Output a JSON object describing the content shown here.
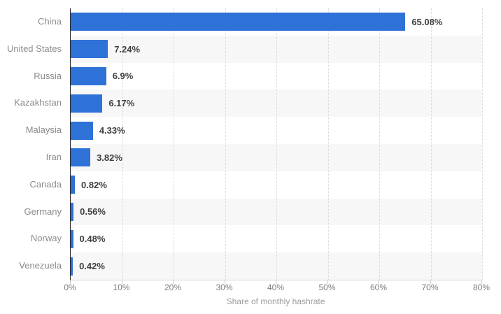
{
  "chart_data": {
    "type": "bar",
    "orientation": "horizontal",
    "categories": [
      "China",
      "United States",
      "Russia",
      "Kazakhstan",
      "Malaysia",
      "Iran",
      "Canada",
      "Germany",
      "Norway",
      "Venezuela"
    ],
    "values": [
      65.08,
      7.24,
      6.9,
      6.17,
      4.33,
      3.82,
      0.82,
      0.56,
      0.48,
      0.42
    ],
    "value_labels": [
      "65.08%",
      "7.24%",
      "6.9%",
      "6.17%",
      "4.33%",
      "3.82%",
      "0.82%",
      "0.56%",
      "0.48%",
      "0.42%"
    ],
    "xlabel": "Share of monthly hashrate",
    "xlim": [
      0,
      80
    ],
    "x_tick_labels": [
      "0%",
      "10%",
      "20%",
      "30%",
      "40%",
      "50%",
      "60%",
      "70%",
      "80%"
    ],
    "grid": "vertical-dotted",
    "legend": "none",
    "row_band_pattern": "odd-rows-shaded",
    "colors": {
      "bar": "#2e72d8",
      "row_band": "#f7f7f7",
      "grid_line": "#d6d6d6",
      "axis_line": "#2b2b2b",
      "baseline": "#d6d6d6",
      "tick_mark": "#c9c9c9",
      "category_label": "#8a8a8a",
      "tick_label": "#7d7d7d",
      "value_label": "#404040",
      "axis_title": "#9b9b9b",
      "background": "#ffffff"
    }
  }
}
